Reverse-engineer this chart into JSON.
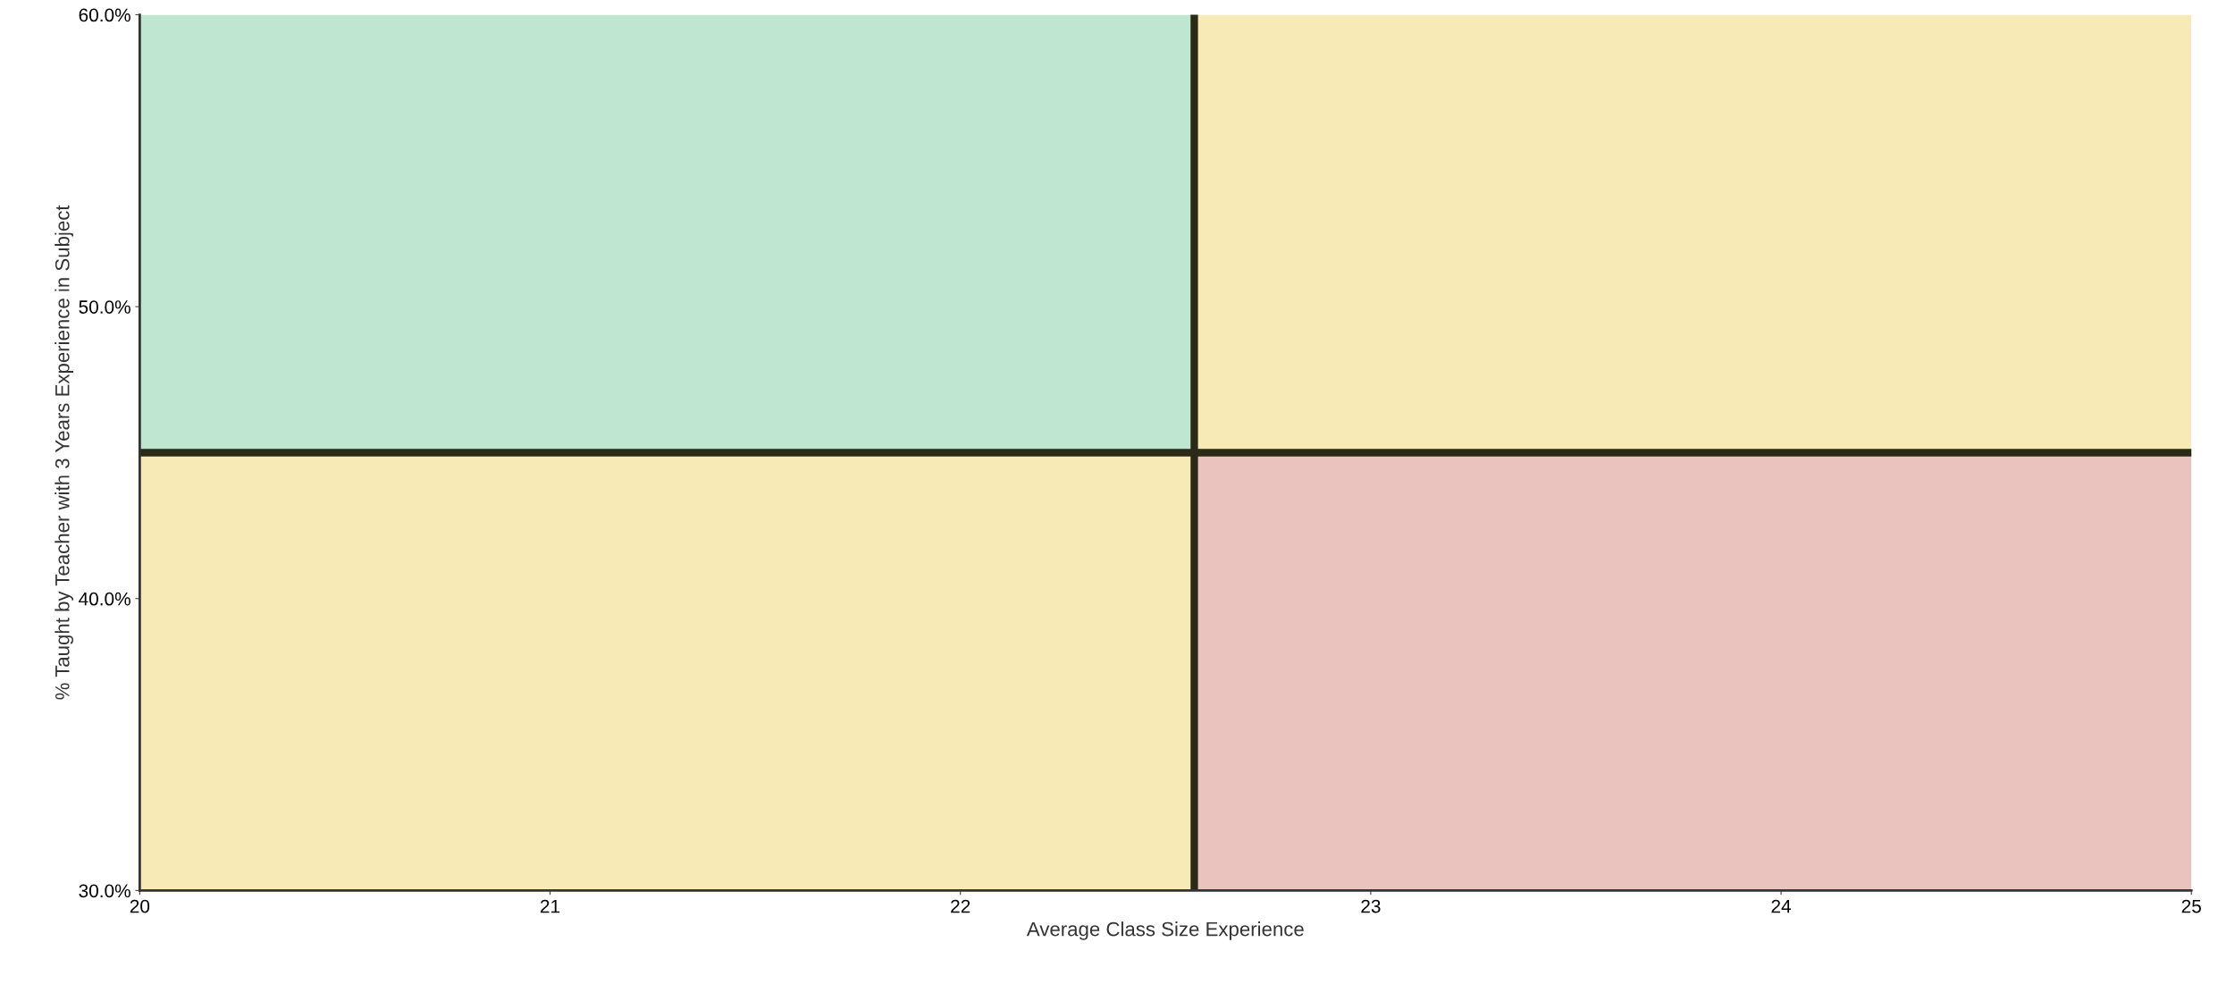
{
  "chart_data": {
    "type": "area",
    "xlabel": "Average Class Size Experience",
    "ylabel": "% Taught by Teacher with 3 Years Experience in Subject",
    "series": [
      {
        "color": "#bfe6d0",
        "x": [
          20,
          22.57
        ],
        "values": [
          60,
          60
        ]
      },
      {
        "color": "#f8eab6",
        "x": [
          22.57,
          25
        ],
        "values": [
          60,
          60
        ]
      },
      {
        "color": "#f8eab6",
        "x": [
          20,
          22.57
        ],
        "values": [
          45,
          45
        ]
      },
      {
        "color": "#eac3bf",
        "x": [
          22.57,
          25
        ],
        "values": [
          45,
          45
        ]
      }
    ],
    "ref_lines": [
      {
        "axis": "x",
        "value": 22.57,
        "color": "#2a2a16"
      },
      {
        "axis": "y",
        "value": 45,
        "color": "#2a2a16"
      }
    ],
    "xlim": [
      20,
      25
    ],
    "xticks": [
      20,
      21,
      22,
      23,
      24,
      25
    ],
    "ylim": [
      30,
      60
    ],
    "yticks": [
      {
        "value": 30,
        "label": "30.0%"
      },
      {
        "value": 40,
        "label": "40.0%"
      },
      {
        "value": 50,
        "label": "50.0%"
      },
      {
        "value": 60,
        "label": "60.0%"
      }
    ],
    "grid": false
  }
}
